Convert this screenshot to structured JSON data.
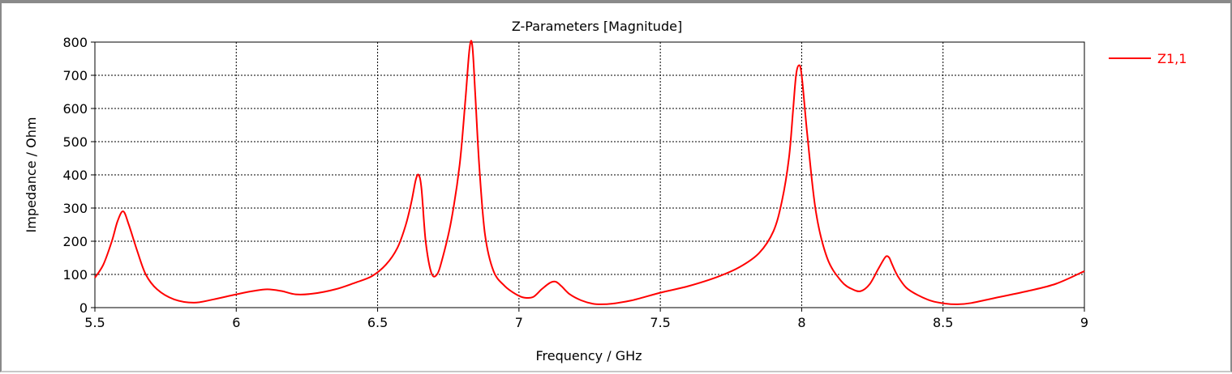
{
  "chart_data": {
    "type": "line",
    "title": "Z-Parameters [Magnitude]",
    "xlabel": "Frequency / GHz",
    "ylabel": "Impedance / Ohm",
    "xlim": [
      5.5,
      9
    ],
    "ylim": [
      0,
      800
    ],
    "xticks": [
      5.5,
      6,
      6.5,
      7,
      7.5,
      8,
      8.5,
      9
    ],
    "xtick_labels": [
      "5.5",
      "6",
      "6.5",
      "7",
      "7.5",
      "8",
      "8.5",
      "9"
    ],
    "yticks": [
      0,
      100,
      200,
      300,
      400,
      500,
      600,
      700,
      800
    ],
    "ytick_labels": [
      "0",
      "100",
      "200",
      "300",
      "400",
      "500",
      "600",
      "700",
      "800"
    ],
    "grid": true,
    "legend_position": "right",
    "series": [
      {
        "name": "Z1,1",
        "color": "#ff0000",
        "x": [
          5.5,
          5.53,
          5.56,
          5.58,
          5.6,
          5.62,
          5.65,
          5.68,
          5.72,
          5.78,
          5.85,
          5.92,
          6.0,
          6.06,
          6.11,
          6.16,
          6.21,
          6.27,
          6.35,
          6.42,
          6.48,
          6.53,
          6.57,
          6.6,
          6.62,
          6.635,
          6.645,
          6.655,
          6.67,
          6.69,
          6.71,
          6.73,
          6.76,
          6.79,
          6.81,
          6.825,
          6.835,
          6.845,
          6.86,
          6.88,
          6.91,
          6.95,
          6.99,
          7.02,
          7.05,
          7.08,
          7.11,
          7.13,
          7.15,
          7.18,
          7.22,
          7.26,
          7.29,
          7.33,
          7.4,
          7.5,
          7.6,
          7.7,
          7.78,
          7.85,
          7.9,
          7.93,
          7.955,
          7.97,
          7.98,
          7.99,
          8.0,
          8.02,
          8.05,
          8.09,
          8.14,
          8.18,
          8.21,
          8.24,
          8.27,
          8.29,
          8.3,
          8.31,
          8.32,
          8.34,
          8.37,
          8.41,
          8.46,
          8.51,
          8.55,
          8.6,
          8.7,
          8.8,
          8.9,
          9.0
        ],
        "y": [
          90,
          130,
          200,
          260,
          290,
          250,
          170,
          100,
          55,
          25,
          15,
          25,
          40,
          50,
          55,
          50,
          40,
          42,
          55,
          75,
          95,
          130,
          180,
          250,
          320,
          385,
          400,
          360,
          200,
          105,
          100,
          150,
          260,
          430,
          620,
          780,
          790,
          650,
          420,
          220,
          110,
          65,
          40,
          30,
          32,
          55,
          75,
          78,
          65,
          40,
          22,
          12,
          10,
          12,
          22,
          45,
          65,
          92,
          122,
          165,
          230,
          320,
          450,
          600,
          700,
          730,
          700,
          520,
          290,
          150,
          80,
          55,
          50,
          70,
          115,
          145,
          155,
          150,
          130,
          95,
          60,
          38,
          20,
          12,
          10,
          14,
          32,
          50,
          72,
          110
        ]
      }
    ]
  }
}
